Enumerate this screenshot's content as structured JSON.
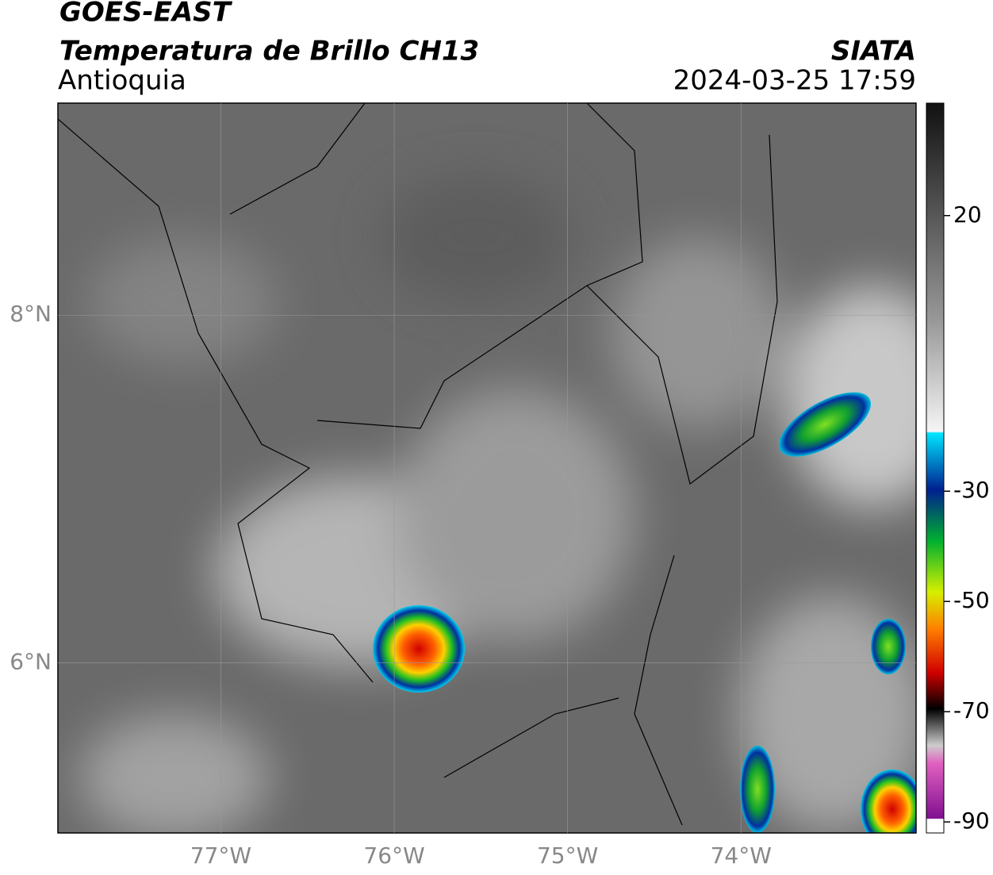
{
  "header": {
    "title": "GOES-EAST",
    "subtitle": "Temperatura de Brillo CH13",
    "region": "Antioquia",
    "source": "SIATA",
    "timestamp": "2024-03-25 17:59"
  },
  "map": {
    "lonlim": [
      -77.94,
      -72.99
    ],
    "latlim": [
      5.02,
      9.22
    ],
    "lon_ticks": [
      {
        "value": -77,
        "label": "77°W"
      },
      {
        "value": -76,
        "label": "76°W"
      },
      {
        "value": -75,
        "label": "75°W"
      },
      {
        "value": -74,
        "label": "74°W"
      }
    ],
    "lat_ticks": [
      {
        "value": 8,
        "label": "8°N"
      },
      {
        "value": 6,
        "label": "6°N"
      }
    ],
    "colorbar": {
      "lim": [
        -92,
        40.4
      ],
      "ticks": [
        20,
        -30,
        -50,
        -70,
        -90
      ]
    }
  }
}
